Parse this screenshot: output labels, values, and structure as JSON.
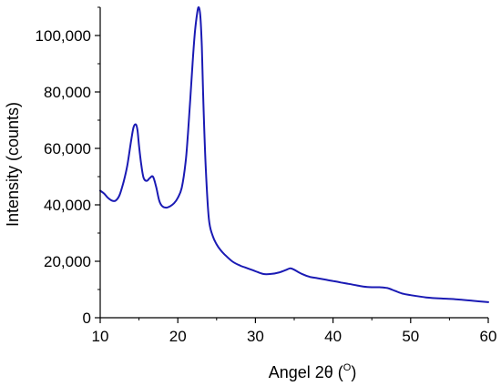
{
  "chart_data": {
    "type": "line",
    "xlabel": "Angel 2θ (",
    "xlabel_unit": "O",
    "xlabel_close": ")",
    "ylabel": "Intensity (counts)",
    "xlim": [
      10,
      60
    ],
    "ylim": [
      0,
      110000
    ],
    "x_ticks": [
      10,
      20,
      30,
      40,
      50,
      60
    ],
    "y_ticks": [
      0,
      20000,
      40000,
      60000,
      80000,
      100000
    ],
    "x_tick_labels": [
      "10",
      "20",
      "30",
      "40",
      "50",
      "60"
    ],
    "y_tick_labels": [
      "0",
      "20,000",
      "40,000",
      "60,000",
      "80,000",
      "100,000"
    ],
    "grid": false,
    "line_color": "#1a1ab4",
    "series": [
      {
        "x": [
          10,
          10.5,
          11,
          11.5,
          12,
          12.5,
          13,
          13.5,
          14,
          14.3,
          14.6,
          14.8,
          15,
          15.3,
          15.6,
          16,
          16.4,
          16.8,
          17.2,
          17.6,
          18,
          18.5,
          19,
          19.5,
          20,
          20.5,
          21,
          21.3,
          21.6,
          21.9,
          22.2,
          22.5,
          22.7,
          22.9,
          23.1,
          23.3,
          23.6,
          24,
          24.5,
          25,
          25.5,
          26,
          27,
          28,
          29,
          30,
          31,
          32,
          33,
          34,
          34.5,
          35,
          36,
          37,
          38,
          39,
          40,
          41,
          42,
          43,
          44,
          45,
          46,
          47,
          48,
          49,
          50,
          52,
          54,
          56,
          58,
          60
        ],
        "y": [
          45000,
          44000,
          42500,
          41500,
          41500,
          43500,
          48000,
          54000,
          63000,
          67500,
          68500,
          66500,
          61000,
          54000,
          49500,
          48500,
          49500,
          50000,
          46500,
          41500,
          39500,
          39000,
          39500,
          40500,
          42500,
          46000,
          55000,
          65000,
          77000,
          90000,
          101000,
          108000,
          110000,
          107000,
          96000,
          76000,
          53000,
          35000,
          29000,
          26000,
          24000,
          22500,
          20000,
          18500,
          17500,
          16500,
          15500,
          15500,
          16000,
          17000,
          17500,
          17000,
          15500,
          14500,
          14000,
          13500,
          13000,
          12500,
          12000,
          11500,
          11000,
          10800,
          10800,
          10500,
          9500,
          8500,
          8000,
          7200,
          6800,
          6500,
          6000,
          5500
        ]
      }
    ]
  }
}
